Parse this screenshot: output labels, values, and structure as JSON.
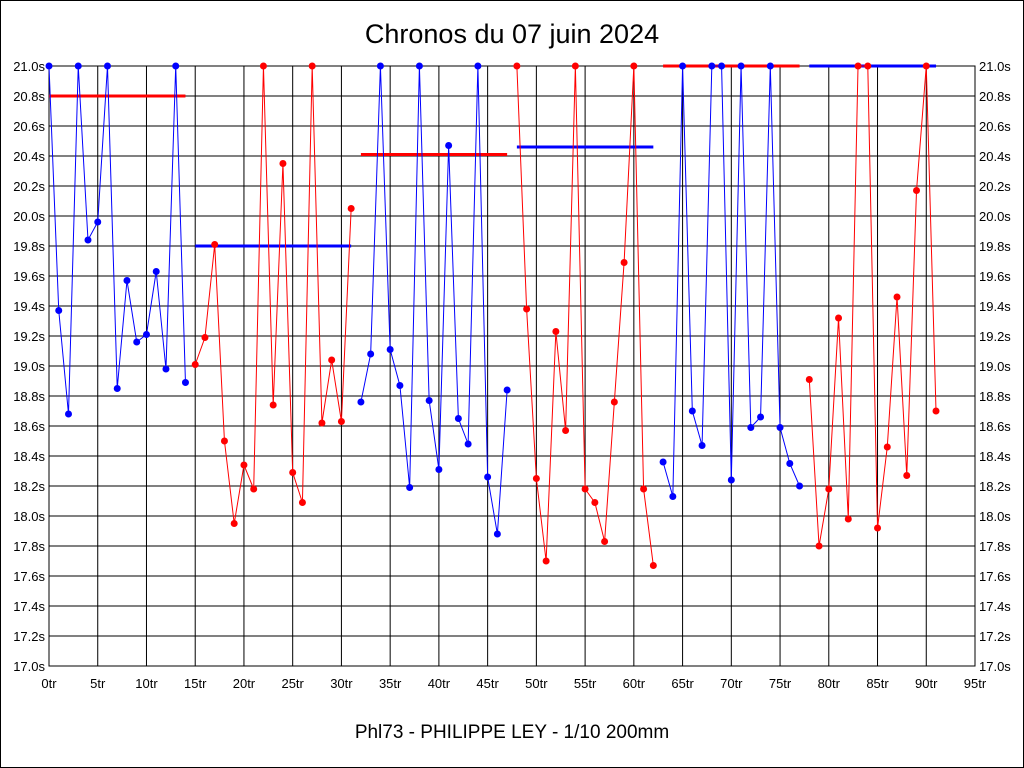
{
  "chart_data": {
    "type": "line",
    "title": "Chronos du 07 juin 2024",
    "xlabel": "Phl73 - PHILIPPE LEY - 1/10 200mm",
    "ylabel": "",
    "xlim": [
      0,
      95
    ],
    "ylim": [
      17.0,
      21.0
    ],
    "x_ticks": [
      "0tr",
      "5tr",
      "10tr",
      "15tr",
      "20tr",
      "25tr",
      "30tr",
      "35tr",
      "40tr",
      "45tr",
      "50tr",
      "55tr",
      "60tr",
      "65tr",
      "70tr",
      "75tr",
      "80tr",
      "85tr",
      "90tr",
      "95tr"
    ],
    "y_ticks": [
      "17.0s",
      "17.2s",
      "17.4s",
      "17.6s",
      "17.8s",
      "18.0s",
      "18.2s",
      "18.4s",
      "18.6s",
      "18.8s",
      "19.0s",
      "19.2s",
      "19.4s",
      "19.6s",
      "19.8s",
      "20.0s",
      "20.2s",
      "20.4s",
      "20.6s",
      "20.8s",
      "21.0s"
    ],
    "grid": true,
    "segments": [
      {
        "color": "#0000ff",
        "start": 0,
        "values": [
          21.0,
          19.37,
          18.68,
          21.0,
          19.84,
          19.96,
          21.0,
          18.85,
          19.57,
          19.16,
          19.21,
          19.63,
          18.98,
          21.0,
          18.89
        ]
      },
      {
        "color": "#ff0000",
        "start": 15,
        "values": [
          19.01,
          19.19,
          19.81,
          18.5,
          17.95,
          18.34,
          18.18,
          21.0,
          18.74,
          20.35,
          18.29,
          18.09,
          21.0,
          18.62,
          19.04,
          18.63,
          20.05
        ]
      },
      {
        "color": "#0000ff",
        "start": 32,
        "values": [
          18.76,
          19.08,
          21.0,
          19.11,
          18.87,
          18.19,
          21.0,
          18.77,
          18.31,
          20.47,
          18.65,
          18.48,
          21.0,
          18.26,
          17.88,
          18.84
        ]
      },
      {
        "color": "#ff0000",
        "start": 48,
        "values": [
          21.0,
          19.38,
          18.25,
          17.7,
          19.23,
          18.57,
          21.0,
          18.18,
          18.09,
          17.83,
          18.76,
          19.69,
          21.0,
          18.18,
          17.67
        ]
      },
      {
        "color": "#0000ff",
        "start": 63,
        "values": [
          18.36,
          18.13,
          21.0,
          18.7,
          18.47,
          21.0,
          21.0,
          18.24,
          21.0,
          18.59,
          18.66,
          21.0,
          18.59,
          18.35,
          18.2
        ]
      },
      {
        "color": "#ff0000",
        "start": 78,
        "values": [
          18.91,
          17.8,
          18.18,
          19.32,
          17.98,
          21.0,
          21.0,
          17.92,
          18.46,
          19.46,
          18.27,
          20.17,
          21.0,
          18.7
        ]
      }
    ],
    "averages": [
      {
        "color": "#ff0000",
        "from": 0,
        "to": 14,
        "value": 20.8
      },
      {
        "color": "#0000ff",
        "from": 15,
        "to": 31,
        "value": 19.8
      },
      {
        "color": "#ff0000",
        "from": 32,
        "to": 47,
        "value": 20.41
      },
      {
        "color": "#0000ff",
        "from": 48,
        "to": 62,
        "value": 20.46
      },
      {
        "color": "#ff0000",
        "from": 63,
        "to": 77,
        "value": 21.0
      },
      {
        "color": "#0000ff",
        "from": 78,
        "to": 91,
        "value": 21.0
      }
    ]
  }
}
